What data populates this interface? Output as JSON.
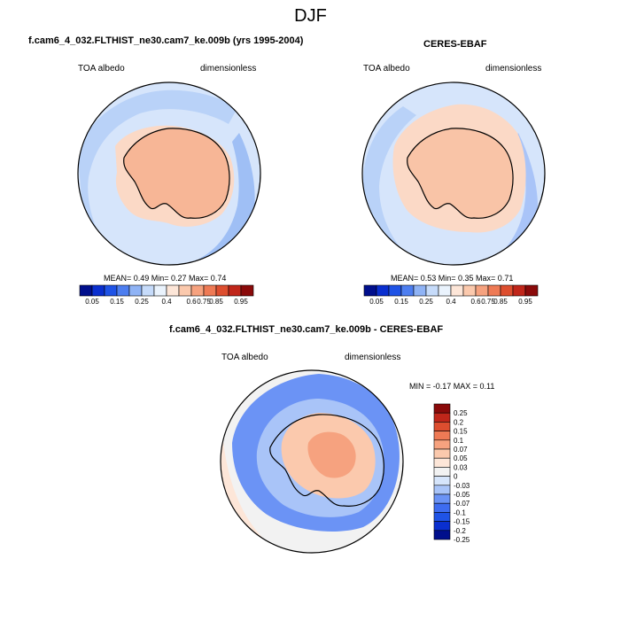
{
  "page": {
    "title": "DJF"
  },
  "colors": {
    "top_scale": [
      "#000f8c",
      "#0a2fcf",
      "#1f53e6",
      "#4d7ef0",
      "#8fb3f5",
      "#c6dbfa",
      "#eaf3fd",
      "#fde6d8",
      "#fbc9ad",
      "#f6a27f",
      "#ee7a55",
      "#dd4e2f",
      "#c0261a",
      "#8a0a0a"
    ],
    "diff_scale": [
      "#000f8c",
      "#0a2fcf",
      "#1f53e6",
      "#3e6cf0",
      "#6b93f5",
      "#a9c4f8",
      "#d6e5fb",
      "#f2f2f2",
      "#fde6d8",
      "#fbc9ad",
      "#f6a27f",
      "#ee7a55",
      "#dd4e2f",
      "#c0261a",
      "#8a0a0a"
    ],
    "coast": "#000000"
  },
  "panels": {
    "model": {
      "title": "f.cam6_4_032.FLTHIST_ne30.cam7_ke.009b (yrs 1995-2004)",
      "left_label": "TOA albedo",
      "right_label": "dimensionless",
      "stats": "MEAN=   0.49  Min=  0.27  Max=   0.74"
    },
    "obs": {
      "title": "CERES-EBAF",
      "left_label": "TOA albedo",
      "right_label": "dimensionless",
      "stats": "MEAN=   0.53  Min=  0.35  Max=   0.71"
    },
    "diff": {
      "title": "f.cam6_4_032.FLTHIST_ne30.cam7_ke.009b - CERES-EBAF",
      "left_label": "TOA albedo",
      "right_label": "dimensionless",
      "stats": "MIN = -0.17 MAX =   0.11"
    }
  },
  "chart_data": [
    {
      "type": "heatmap",
      "projection": "south-polar-stereographic",
      "title": "f.cam6_4_032.FLTHIST_ne30.cam7_ke.009b (yrs 1995-2004)",
      "variable": "TOA albedo",
      "units": "dimensionless",
      "stats": {
        "mean": 0.49,
        "min": 0.27,
        "max": 0.74
      },
      "colorbar_levels": [
        0.05,
        0.1,
        0.15,
        0.2,
        0.25,
        0.3,
        0.4,
        0.5,
        0.6,
        0.7,
        0.75,
        0.8,
        0.85,
        0.9,
        0.95
      ],
      "colorbar_labels": [
        "0.05",
        "0.15",
        "0.25",
        "0.4",
        "0.6",
        "0.75",
        "0.85",
        "0.95"
      ],
      "colorbar_orientation": "horizontal"
    },
    {
      "type": "heatmap",
      "projection": "south-polar-stereographic",
      "title": "CERES-EBAF",
      "variable": "TOA albedo",
      "units": "dimensionless",
      "stats": {
        "mean": 0.53,
        "min": 0.35,
        "max": 0.71
      },
      "colorbar_levels": [
        0.05,
        0.1,
        0.15,
        0.2,
        0.25,
        0.3,
        0.4,
        0.5,
        0.6,
        0.7,
        0.75,
        0.8,
        0.85,
        0.9,
        0.95
      ],
      "colorbar_labels": [
        "0.05",
        "0.15",
        "0.25",
        "0.4",
        "0.6",
        "0.75",
        "0.85",
        "0.95"
      ],
      "colorbar_orientation": "horizontal"
    },
    {
      "type": "heatmap",
      "projection": "south-polar-stereographic",
      "title": "f.cam6_4_032.FLTHIST_ne30.cam7_ke.009b - CERES-EBAF",
      "variable": "TOA albedo",
      "units": "dimensionless",
      "stats": {
        "min": -0.17,
        "max": 0.11
      },
      "colorbar_levels": [
        0.25,
        0.2,
        0.15,
        0.1,
        0.07,
        0.05,
        0.03,
        0,
        -0.03,
        -0.05,
        -0.07,
        -0.1,
        -0.15,
        -0.2,
        -0.25
      ],
      "colorbar_labels": [
        "0.25",
        "0.2",
        "0.15",
        "0.1",
        "0.07",
        "0.05",
        "0.03",
        "0",
        "-0.03",
        "-0.05",
        "-0.07",
        "-0.1",
        "-0.15",
        "-0.2",
        "-0.25"
      ],
      "colorbar_orientation": "vertical"
    }
  ]
}
